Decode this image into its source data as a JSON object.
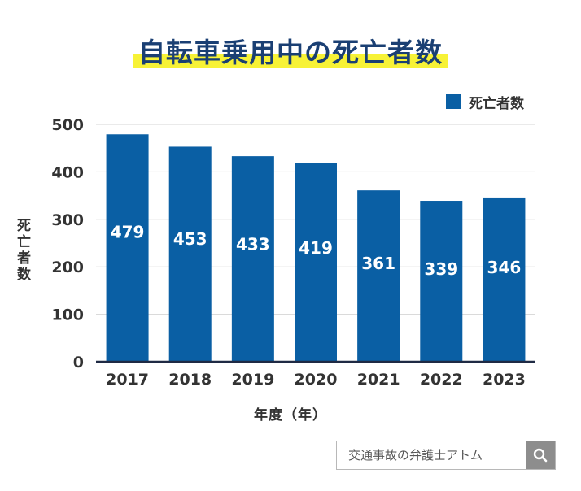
{
  "title": "自転車乗用中の死亡者数",
  "legend": {
    "label": "死亡者数",
    "color": "#0a5fa4"
  },
  "search": {
    "text": "交通事故の弁護士アトム"
  },
  "colors": {
    "title": "#1a3f73",
    "highlight": "#f7f236",
    "bar": "#0a5fa4",
    "grid": "#d4d4d4",
    "axis": "#1f2a44"
  },
  "chart_data": {
    "type": "bar",
    "title": "自転車乗用中の死亡者数",
    "xlabel": "年度（年）",
    "ylabel": "死亡者数",
    "categories": [
      "2017",
      "2018",
      "2019",
      "2020",
      "2021",
      "2022",
      "2023"
    ],
    "series": [
      {
        "name": "死亡者数",
        "values": [
          479,
          453,
          433,
          419,
          361,
          339,
          346
        ]
      }
    ],
    "ylim": [
      0,
      500
    ],
    "yticks": [
      0,
      100,
      200,
      300,
      400,
      500
    ],
    "grid": true,
    "legend_position": "top-right"
  }
}
